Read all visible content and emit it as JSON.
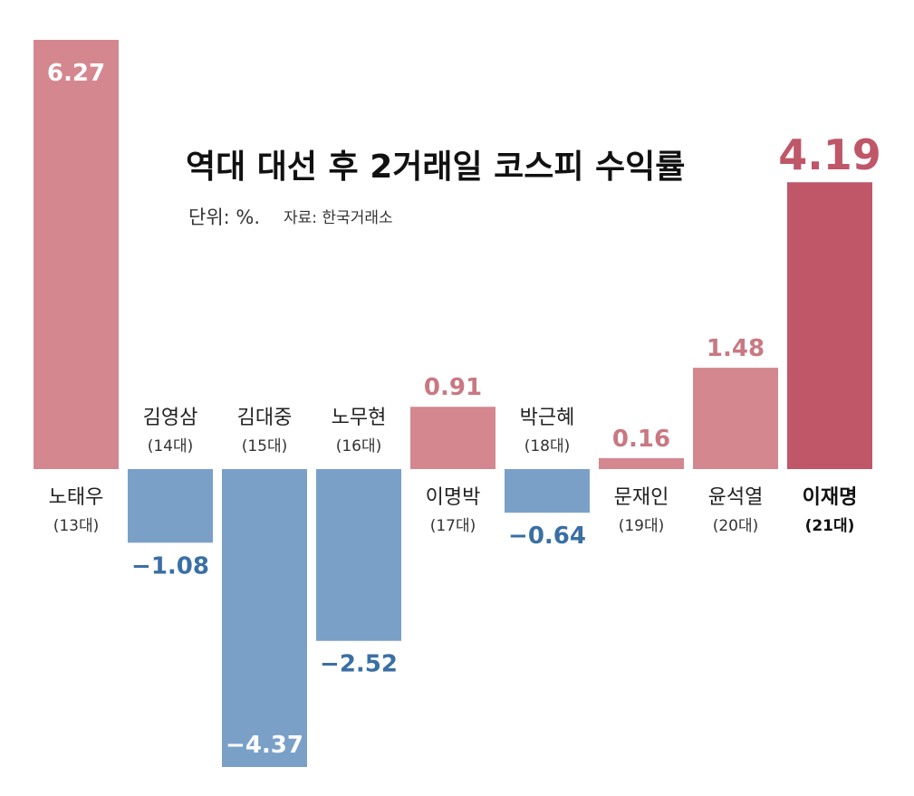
{
  "chart_data": {
    "type": "bar",
    "title": "역대 대선 후 2거래일 코스피 수익률",
    "subtitle_unit": "단위: %.",
    "subtitle_source": "자료: 한국거래소",
    "xlabel": "",
    "ylabel": "",
    "ylim": [
      -4.37,
      6.27
    ],
    "grid": false,
    "categories": [
      "노태우",
      "김영삼",
      "김대중",
      "노무현",
      "이명박",
      "박근혜",
      "문재인",
      "윤석열",
      "이재명"
    ],
    "terms": [
      "(13대)",
      "(14대)",
      "(15대)",
      "(16대)",
      "(17대)",
      "(18대)",
      "(19대)",
      "(20대)",
      "(21대)"
    ],
    "values": [
      6.27,
      -1.08,
      -4.37,
      -2.52,
      0.91,
      -0.64,
      0.16,
      1.48,
      4.19
    ],
    "value_labels": [
      "6.27",
      "−1.08",
      "−4.37",
      "−2.52",
      "0.91",
      "−0.64",
      "0.16",
      "1.48",
      "4.19"
    ],
    "highlight_index": 8,
    "colors": {
      "positive": "#d4878f",
      "negative": "#7aa0c8",
      "highlight": "#bf5769",
      "negative_label": "#3a6fa5",
      "positive_label": "#c97882",
      "inside_label": "#ffffff"
    }
  }
}
